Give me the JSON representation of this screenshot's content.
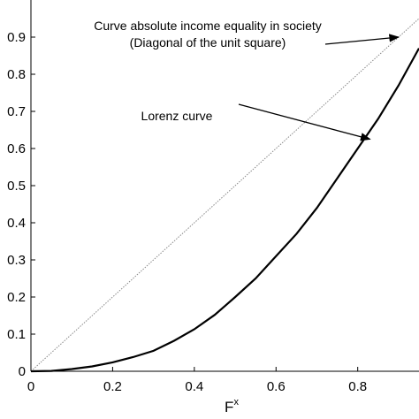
{
  "chart_data": {
    "type": "line",
    "title": "",
    "xlabel": "F",
    "xlabel_superscript": "x",
    "ylabel": "",
    "xlim": [
      0,
      0.95
    ],
    "ylim": [
      0,
      1
    ],
    "x_ticks": [
      0,
      0.2,
      0.4,
      0.6,
      0.8
    ],
    "x_tick_labels": [
      "0",
      "0.2",
      "0.4",
      "0.6",
      "0.8"
    ],
    "y_ticks": [
      0,
      0.1,
      0.2,
      0.3,
      0.4,
      0.5,
      0.6,
      0.7,
      0.8,
      0.9
    ],
    "y_tick_labels": [
      "0",
      "0.1",
      "0.2",
      "0.3",
      "0.4",
      "0.5",
      "0.6",
      "0.7",
      "0.8",
      "0.9"
    ],
    "grid": false,
    "series": [
      {
        "style": "dotted",
        "color": "#888888",
        "x": [
          0,
          0.95
        ],
        "y": [
          0,
          0.95
        ]
      },
      {
        "style": "solid",
        "color": "#000000",
        "x": [
          0,
          0.05,
          0.1,
          0.15,
          0.2,
          0.25,
          0.3,
          0.35,
          0.4,
          0.45,
          0.5,
          0.55,
          0.6,
          0.65,
          0.7,
          0.75,
          0.8,
          0.85,
          0.9,
          0.95
        ],
        "y": [
          0,
          0.001,
          0.006,
          0.013,
          0.024,
          0.038,
          0.055,
          0.082,
          0.113,
          0.152,
          0.2,
          0.25,
          0.31,
          0.37,
          0.44,
          0.52,
          0.6,
          0.68,
          0.77,
          0.87
        ]
      }
    ],
    "annotations": [
      {
        "lines": [
          "Curve absolute income equality in society",
          "(Diagonal of the unit square)"
        ],
        "arrow_target": [
          0.9,
          0.9
        ]
      },
      {
        "lines": [
          "Lorenz curve"
        ],
        "arrow_target": [
          0.83,
          0.625
        ]
      }
    ]
  }
}
